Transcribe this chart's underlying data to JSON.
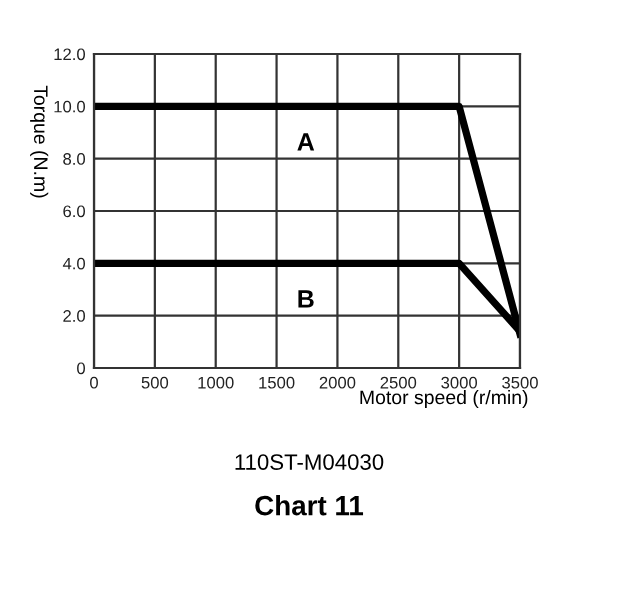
{
  "chart_data": {
    "type": "line",
    "title": "Chart 11",
    "subtitle": "110ST-M04030",
    "xlabel": "Motor speed (r/min)",
    "ylabel": "Torque (N.m)",
    "xlim": [
      0,
      3500
    ],
    "xticks": [
      0,
      500,
      1000,
      1500,
      2000,
      2500,
      3000,
      3500
    ],
    "ylim": [
      0,
      12
    ],
    "yticks": [
      {
        "value": 0,
        "label": "0"
      },
      {
        "value": 2,
        "label": "2.0"
      },
      {
        "value": 4,
        "label": "4.0"
      },
      {
        "value": 6,
        "label": "6.0"
      },
      {
        "value": 8,
        "label": "8.0"
      },
      {
        "value": 10,
        "label": "10.0"
      },
      {
        "value": 12,
        "label": "12.0"
      }
    ],
    "grid": true,
    "marker": "none",
    "line_style": "solid",
    "legend": false,
    "series": [
      {
        "name": "A",
        "color": "#000000",
        "x": [
          0,
          3000,
          3500
        ],
        "values": [
          10,
          10,
          1.3
        ]
      },
      {
        "name": "B",
        "color": "#000000",
        "x": [
          0,
          3000,
          3500
        ],
        "values": [
          4,
          4,
          1.4
        ]
      }
    ]
  }
}
